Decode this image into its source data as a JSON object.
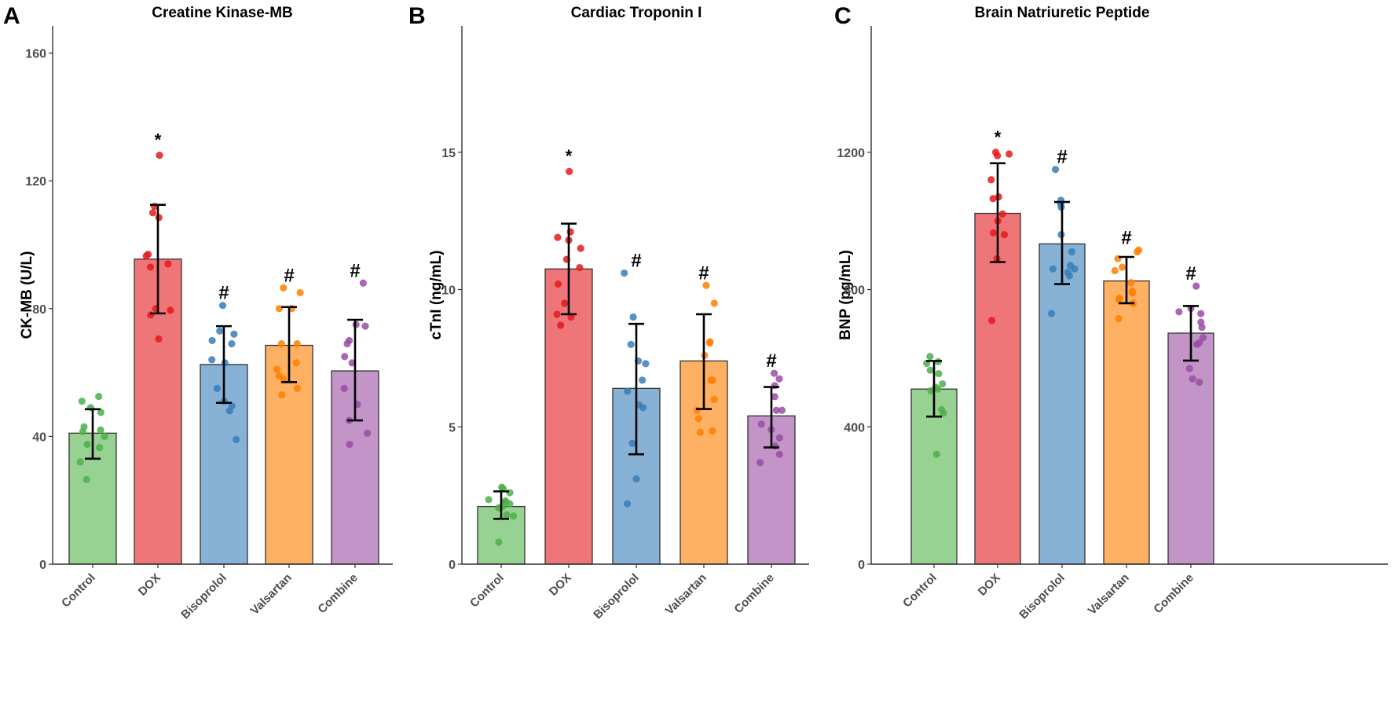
{
  "figure": {
    "panels_count": 3
  },
  "colors": {
    "Control": {
      "fill": "#97d293",
      "point": "#4daf4a"
    },
    "DOX": {
      "fill": "#ef7678",
      "point": "#e41a1c"
    },
    "Bisoprolol": {
      "fill": "#87b1d5",
      "point": "#377eb8"
    },
    "Valsartan": {
      "fill": "#feb063",
      "point": "#ff7f00"
    },
    "Combine": {
      "fill": "#c294c7",
      "point": "#984ea3"
    },
    "axis": "#333333",
    "errorbar": "#000000",
    "bar_outline": "#333333"
  },
  "chart_data": [
    {
      "type": "bar",
      "panel": "A",
      "title": "Creatine Kinase-MB",
      "xlabel": "",
      "ylabel": "CK-MB (U/L)",
      "ylim": [
        0,
        168.5
      ],
      "yticks": [
        0,
        40,
        80,
        120,
        160
      ],
      "grid": false,
      "legend": "none",
      "categories": [
        "Control",
        "DOX",
        "Bisoprolol",
        "Valsartan",
        "Combine"
      ],
      "values": [
        41,
        95.5,
        62.5,
        68.5,
        60.5
      ],
      "error_low": [
        33,
        78.5,
        50.5,
        57,
        45
      ],
      "error_high": [
        48.5,
        112.5,
        74.5,
        80.5,
        76.5
      ],
      "annotations": [
        "",
        "*",
        "#",
        "#",
        "#"
      ],
      "points": [
        [
          52.5,
          51,
          49,
          47.5,
          43,
          42,
          41.5,
          40,
          37.5,
          36.5,
          32,
          26.5
        ],
        [
          128,
          112,
          110,
          108.5,
          97,
          96.5,
          94,
          93,
          80,
          79.5,
          78,
          70.5
        ],
        [
          81,
          73,
          72,
          70,
          69,
          64,
          63,
          55,
          51,
          49.5,
          48,
          39
        ],
        [
          86.5,
          85,
          80,
          80,
          69,
          69,
          63,
          61,
          59,
          58,
          55,
          53
        ],
        [
          88,
          75,
          74.5,
          70,
          69,
          65,
          63,
          55,
          50,
          45,
          41,
          37.5
        ]
      ]
    },
    {
      "type": "bar",
      "panel": "B",
      "title": "Cardiac Troponin I",
      "xlabel": "",
      "ylabel": "cTnI (ng/mL)",
      "ylim": [
        0,
        19.6
      ],
      "yticks": [
        0,
        5,
        10,
        15
      ],
      "grid": false,
      "legend": "none",
      "categories": [
        "Control",
        "DOX",
        "Bisoprolol",
        "Valsartan",
        "Combine"
      ],
      "values": [
        2.1,
        10.75,
        6.4,
        7.4,
        5.4
      ],
      "error_low": [
        1.65,
        9.1,
        4.0,
        5.65,
        4.25
      ],
      "error_high": [
        2.65,
        12.4,
        8.75,
        9.1,
        6.45
      ],
      "annotations": [
        "",
        "*",
        "#",
        "#",
        "#"
      ],
      "points": [
        [
          2.8,
          2.75,
          2.6,
          2.35,
          2.3,
          2.25,
          2.2,
          2.1,
          2.05,
          1.8,
          1.75,
          0.8
        ],
        [
          14.3,
          12.1,
          11.9,
          11.8,
          11.5,
          11.1,
          10.8,
          10.2,
          9.5,
          9.1,
          9.0,
          8.7
        ],
        [
          10.6,
          9.0,
          8.0,
          7.4,
          7.3,
          6.7,
          6.3,
          5.8,
          5.7,
          4.4,
          3.1,
          2.2
        ],
        [
          10.15,
          9.5,
          8.1,
          8.05,
          7.6,
          6.7,
          6.0,
          5.6,
          5.3,
          4.85,
          4.8,
          6.7
        ],
        [
          6.95,
          6.75,
          6.5,
          6.1,
          5.6,
          5.6,
          5.1,
          4.9,
          4.6,
          4.3,
          4.0,
          3.7
        ]
      ]
    },
    {
      "type": "bar",
      "panel": "C",
      "title": "Brain Natriuretic Peptide",
      "xlabel": "",
      "ylabel": "BNP (pg/mL)",
      "ylim": [
        0,
        1568
      ],
      "yticks": [
        0,
        400,
        800,
        1200
      ],
      "grid": false,
      "legend": "none",
      "categories": [
        "Control",
        "DOX",
        "Bisoprolol",
        "Valsartan",
        "Combine"
      ],
      "values": [
        510,
        1022,
        933,
        825,
        673
      ],
      "error_low": [
        430,
        880,
        816,
        760,
        593
      ],
      "error_high": [
        592,
        1168,
        1055,
        895,
        752
      ],
      "annotations": [
        "",
        "*",
        "#",
        "#",
        "#"
      ],
      "points": [
        [
          605,
          590,
          585,
          565,
          555,
          525,
          515,
          510,
          505,
          450,
          440,
          320
        ],
        [
          1200,
          1195,
          1190,
          1120,
          1070,
          1065,
          1020,
          1000,
          965,
          960,
          890,
          710
        ],
        [
          1150,
          1060,
          1050,
          1040,
          960,
          910,
          870,
          860,
          860,
          850,
          840,
          730
        ],
        [
          915,
          910,
          890,
          865,
          855,
          820,
          795,
          790,
          775,
          770,
          760,
          715
        ],
        [
          810,
          745,
          735,
          730,
          705,
          690,
          660,
          645,
          640,
          570,
          540,
          530
        ]
      ]
    }
  ]
}
